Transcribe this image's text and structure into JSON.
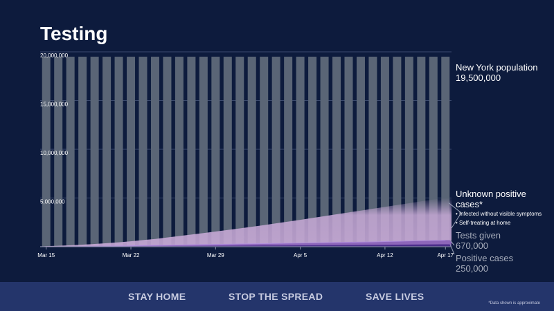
{
  "title": "Testing",
  "annotations": {
    "population": {
      "title": "New York population",
      "value": "19,500,000"
    },
    "unknown": {
      "title": "Unknown positive cases*",
      "bullets": [
        "• Infected without visible symptoms",
        "• Self-treating at home"
      ]
    },
    "tests": {
      "title": "Tests given",
      "value": "670,000"
    },
    "positive": {
      "title": "Positive cases",
      "value": "250,000"
    }
  },
  "footer": {
    "slogans": [
      "STAY HOME",
      "STOP THE SPREAD",
      "SAVE LIVES"
    ],
    "note": "*Data shown is approximate"
  },
  "colors": {
    "background": "#0d1b3d",
    "population_bar": "#5a6576",
    "unknown": "#c7a9d6",
    "tests": "#8a63b8",
    "positive": "#4b2e8a"
  },
  "chart_data": {
    "type": "bar",
    "x_tick_labels": [
      "Mar 15",
      "Mar 22",
      "Mar 29",
      "Apr 5",
      "Apr 12",
      "Apr 17"
    ],
    "y_tick_labels": [
      "20,000,000",
      "15,000,000",
      "10,000,000",
      "5,000,000"
    ],
    "ylim": [
      0,
      20000000
    ],
    "grid": true,
    "days": 34,
    "population": 19500000,
    "series": [
      {
        "name": "New York population",
        "values": [
          19500000,
          19500000,
          19500000,
          19500000,
          19500000,
          19500000,
          19500000,
          19500000,
          19500000,
          19500000,
          19500000,
          19500000,
          19500000,
          19500000,
          19500000,
          19500000,
          19500000,
          19500000,
          19500000,
          19500000,
          19500000,
          19500000,
          19500000,
          19500000,
          19500000,
          19500000,
          19500000,
          19500000,
          19500000,
          19500000,
          19500000,
          19500000,
          19500000,
          19500000
        ]
      },
      {
        "name": "Unknown positive cases*",
        "values": [
          60000,
          100000,
          150000,
          210000,
          280000,
          360000,
          450000,
          560000,
          680000,
          800000,
          950000,
          1100000,
          1250000,
          1400000,
          1560000,
          1720000,
          1880000,
          2050000,
          2220000,
          2400000,
          2580000,
          2760000,
          2950000,
          3140000,
          3330000,
          3520000,
          3710000,
          3900000,
          4090000,
          4280000,
          4470000,
          4660000,
          4850000,
          5000000
        ]
      },
      {
        "name": "Tests given",
        "values": [
          5000,
          10000,
          20000,
          30000,
          45000,
          60000,
          80000,
          100000,
          120000,
          140000,
          160000,
          180000,
          200000,
          220000,
          240000,
          260000,
          280000,
          300000,
          320000,
          340000,
          360000,
          380000,
          400000,
          420000,
          440000,
          460000,
          480000,
          500000,
          530000,
          560000,
          590000,
          620000,
          645000,
          670000
        ]
      },
      {
        "name": "Positive cases",
        "values": [
          1000,
          2000,
          5000,
          8000,
          12000,
          18000,
          25000,
          32000,
          40000,
          48000,
          56000,
          64000,
          72000,
          80000,
          88000,
          96000,
          104000,
          112000,
          120000,
          128000,
          136000,
          144000,
          152000,
          160000,
          168000,
          176000,
          184000,
          192000,
          200000,
          210000,
          220000,
          230000,
          240000,
          250000
        ]
      }
    ]
  }
}
